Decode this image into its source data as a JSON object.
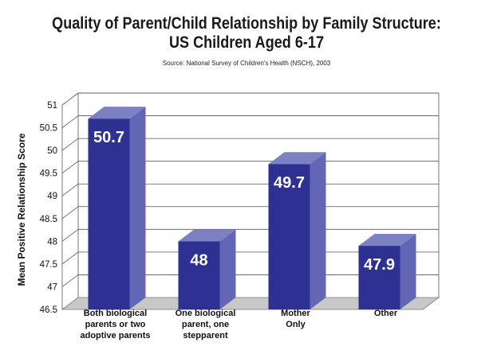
{
  "chart_data": {
    "type": "bar",
    "title_line1": "Quality of Parent/Child Relationship by Family Structure:",
    "title_line2": "US Children Aged 6-17",
    "subtitle": "Source: National  Survey of Children's Health (NSCH), 2003",
    "ylabel": "Mean Positive Relationship Score",
    "xlabel": "",
    "ylim": [
      46.5,
      51
    ],
    "yticks": [
      "46.5",
      "47",
      "47.5",
      "48",
      "48.5",
      "49",
      "49.5",
      "50",
      "50.5",
      "51"
    ],
    "categories": [
      [
        "Both biological",
        "parents or two",
        "adoptive parents"
      ],
      [
        "One biological",
        "parent, one",
        "stepparent"
      ],
      [
        "Mother",
        "Only"
      ],
      [
        "Other"
      ]
    ],
    "values": [
      50.7,
      48,
      49.7,
      47.9
    ],
    "data_labels": [
      "50.7",
      "48",
      "49.7",
      "47.9"
    ],
    "grid": true,
    "style": "3d",
    "colors": {
      "bar_front": "#2e3192",
      "bar_side": "#6366b4",
      "bar_top": "#7d80c2",
      "floor": "#c8c8c8",
      "grid": "#555555"
    }
  }
}
